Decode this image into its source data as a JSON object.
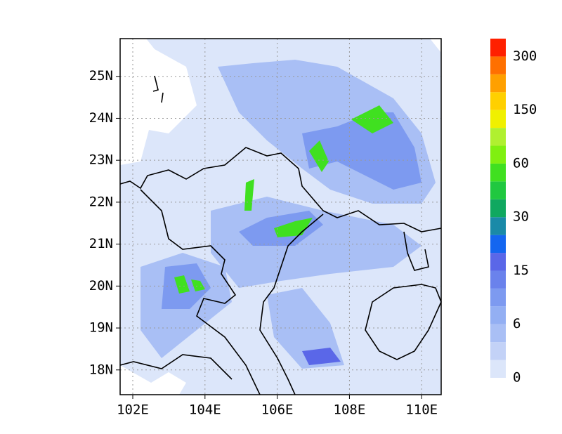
{
  "chart_data": {
    "type": "map",
    "xlim": [
      101.65,
      110.54
    ],
    "ylim": [
      17.41,
      25.9
    ],
    "xticks": [
      {
        "value": 102,
        "label": "102E"
      },
      {
        "value": 104,
        "label": "104E"
      },
      {
        "value": 106,
        "label": "106E"
      },
      {
        "value": 108,
        "label": "108E"
      },
      {
        "value": 110,
        "label": "110E"
      }
    ],
    "yticks": [
      {
        "value": 18,
        "label": "18N"
      },
      {
        "value": 19,
        "label": "19N"
      },
      {
        "value": 20,
        "label": "20N"
      },
      {
        "value": 21,
        "label": "21N"
      },
      {
        "value": 22,
        "label": "22N"
      },
      {
        "value": 23,
        "label": "23N"
      },
      {
        "value": 24,
        "label": "24N"
      },
      {
        "value": 25,
        "label": "25N"
      }
    ],
    "grid": true,
    "colorbar": {
      "colors": [
        "#dce6fa",
        "#c3d2f7",
        "#a9bff5",
        "#93aff3",
        "#7d9af0",
        "#6a82ec",
        "#5a67e8",
        "#1466f0",
        "#1a8aa8",
        "#10a860",
        "#20c840",
        "#40e020",
        "#80f010",
        "#b0f030",
        "#f0f000",
        "#ffd000",
        "#ffa000",
        "#ff7000",
        "#ff2000"
      ],
      "ticks": [
        0,
        6,
        15,
        30,
        60,
        150,
        300
      ]
    }
  }
}
